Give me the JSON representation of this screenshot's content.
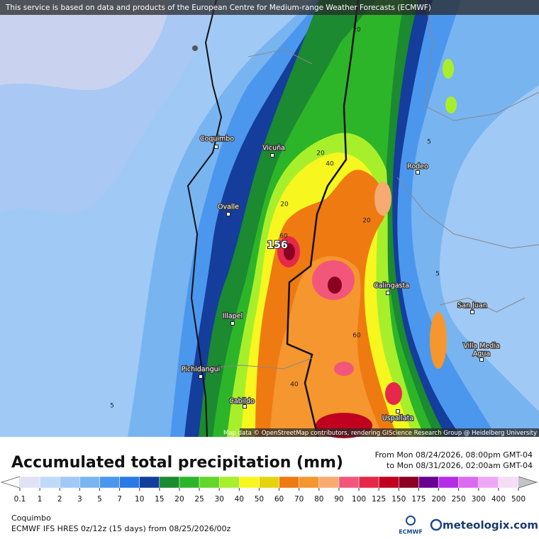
{
  "banner": "This service is based on data and products of the European Centre for Medium-range Weather Forecasts (ECMWF)",
  "map": {
    "places": [
      "Coquimbo",
      "Vicuña",
      "Ovalle",
      "Illapel",
      "Pichidangui",
      "Cabildo",
      "Rodeo",
      "Calingasta",
      "San Juan",
      "Villa Media",
      "Agua",
      "Uspallata"
    ],
    "contour_labels": [
      "20",
      "20",
      "40",
      "20",
      "60",
      "156",
      "20",
      "5",
      "5",
      "60",
      "40",
      "5"
    ],
    "attribution": "Map data © OpenStreetMap contributors, rendering GIScience Research Group @ Heidelberg University"
  },
  "legend": {
    "title": "Accumulated total precipitation (mm)",
    "from": "From Mon 08/24/2026, 08:00pm GMT-04",
    "to": "to Mon 08/31/2026, 02:00am GMT-04",
    "labels": [
      0.1,
      1,
      2,
      3,
      5,
      7,
      10,
      15,
      20,
      25,
      30,
      40,
      50,
      60,
      70,
      80,
      90,
      100,
      125,
      150,
      175,
      200,
      250,
      300,
      400,
      500
    ],
    "colors": [
      "#e2e2f6",
      "#bfdaf8",
      "#a0c9f5",
      "#7ab5f1",
      "#4b97ee",
      "#2a79e5",
      "#143d9c",
      "#1b8a30",
      "#2db52a",
      "#62d62b",
      "#a8ef2b",
      "#f7f71f",
      "#e4d40e",
      "#ef7a12",
      "#f5962f",
      "#f8ab70",
      "#f2577b",
      "#e6284b",
      "#bf001f",
      "#8b0021",
      "#690090",
      "#b32de6",
      "#db6cf0",
      "#eda8f5",
      "#f6ddf6"
    ],
    "below_color": "#ffffff",
    "above_color": "#c4c4c4"
  },
  "footer": {
    "location": "Coquimbo",
    "model": "ECMWF IFS HRES 0z/12z (15 days) from  08/25/2026/00z",
    "ecmwf_logo": "ECMWF",
    "brand": "meteologix.com"
  }
}
